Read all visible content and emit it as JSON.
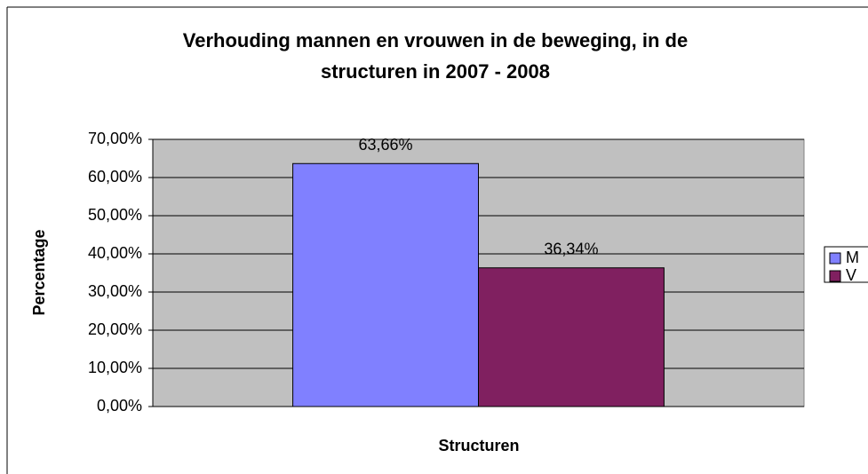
{
  "chart_data": {
    "type": "bar",
    "title": [
      "Verhouding mannen en vrouwen in de beweging, in de",
      "structuren in 2007 - 2008"
    ],
    "x_label": "Structuren",
    "y_label": "Percentage",
    "categories": [
      null
    ],
    "series": [
      {
        "name": "M",
        "color": "#8080ff",
        "values": [
          63.66
        ],
        "value_labels": [
          "63,66%"
        ]
      },
      {
        "name": "V",
        "color": "#802060",
        "values": [
          36.34
        ],
        "value_labels": [
          "36,34%"
        ]
      }
    ],
    "ylim": [
      0,
      70
    ],
    "yticks": [
      {
        "value": 0,
        "label": "0,00%"
      },
      {
        "value": 10,
        "label": "10,00%"
      },
      {
        "value": 20,
        "label": "20,00%"
      },
      {
        "value": 30,
        "label": "30,00%"
      },
      {
        "value": 40,
        "label": "40,00%"
      },
      {
        "value": 50,
        "label": "50,00%"
      },
      {
        "value": 60,
        "label": "60,00%"
      },
      {
        "value": 70,
        "label": "70,00%"
      }
    ],
    "grid": true,
    "legend": "right"
  }
}
